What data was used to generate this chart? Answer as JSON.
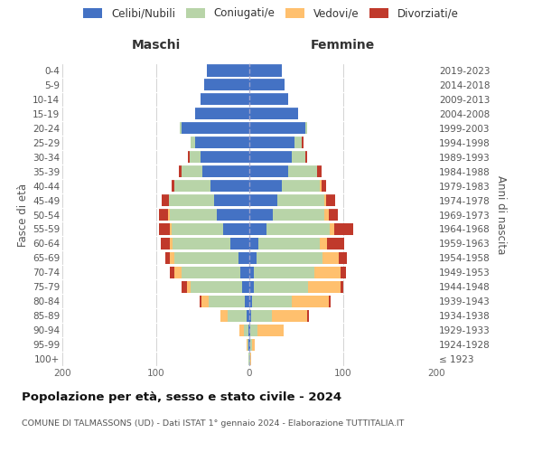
{
  "age_groups": [
    "100+",
    "95-99",
    "90-94",
    "85-89",
    "80-84",
    "75-79",
    "70-74",
    "65-69",
    "60-64",
    "55-59",
    "50-54",
    "45-49",
    "40-44",
    "35-39",
    "30-34",
    "25-29",
    "20-24",
    "15-19",
    "10-14",
    "5-9",
    "0-4"
  ],
  "birth_years": [
    "≤ 1923",
    "1924-1928",
    "1929-1933",
    "1934-1938",
    "1939-1943",
    "1944-1948",
    "1949-1953",
    "1954-1958",
    "1959-1963",
    "1964-1968",
    "1969-1973",
    "1974-1978",
    "1979-1983",
    "1984-1988",
    "1989-1993",
    "1994-1998",
    "1999-2003",
    "2004-2008",
    "2009-2013",
    "2014-2018",
    "2019-2023"
  ],
  "maschi": {
    "celibi": [
      0,
      1,
      1,
      3,
      5,
      8,
      10,
      12,
      20,
      28,
      35,
      38,
      42,
      50,
      52,
      58,
      72,
      58,
      52,
      48,
      45
    ],
    "coniugati": [
      1,
      1,
      5,
      20,
      38,
      55,
      62,
      68,
      62,
      55,
      50,
      48,
      38,
      22,
      12,
      5,
      2,
      0,
      0,
      0,
      0
    ],
    "vedovi": [
      0,
      1,
      5,
      8,
      8,
      4,
      8,
      5,
      3,
      2,
      2,
      0,
      0,
      0,
      0,
      0,
      0,
      0,
      0,
      0,
      0
    ],
    "divorziati": [
      0,
      0,
      0,
      0,
      2,
      5,
      5,
      5,
      10,
      12,
      10,
      8,
      3,
      3,
      2,
      0,
      0,
      0,
      0,
      0,
      0
    ]
  },
  "femmine": {
    "nubili": [
      0,
      1,
      1,
      2,
      3,
      5,
      5,
      8,
      10,
      18,
      25,
      30,
      35,
      42,
      45,
      48,
      60,
      52,
      42,
      38,
      35
    ],
    "coniugate": [
      1,
      2,
      8,
      22,
      42,
      58,
      65,
      70,
      65,
      68,
      55,
      50,
      40,
      30,
      15,
      8,
      2,
      0,
      0,
      0,
      0
    ],
    "vedove": [
      1,
      3,
      28,
      38,
      40,
      35,
      28,
      18,
      8,
      5,
      5,
      2,
      2,
      0,
      0,
      0,
      0,
      0,
      0,
      0,
      0
    ],
    "divorziate": [
      0,
      0,
      0,
      2,
      2,
      2,
      5,
      8,
      18,
      20,
      10,
      10,
      5,
      5,
      2,
      2,
      0,
      0,
      0,
      0,
      0
    ]
  },
  "color_celibi": "#4472c4",
  "color_coniugati": "#b8d4a8",
  "color_vedovi": "#ffc06e",
  "color_divorziati": "#c0392b",
  "title": "Popolazione per età, sesso e stato civile - 2024",
  "subtitle": "COMUNE DI TALMASSONS (UD) - Dati ISTAT 1° gennaio 2024 - Elaborazione TUTTITALIA.IT",
  "xlabel_maschi": "Maschi",
  "xlabel_femmine": "Femmine",
  "ylabel_left": "Fasce di età",
  "ylabel_right": "Anni di nascita",
  "xlim": 200,
  "bg_color": "#ffffff"
}
